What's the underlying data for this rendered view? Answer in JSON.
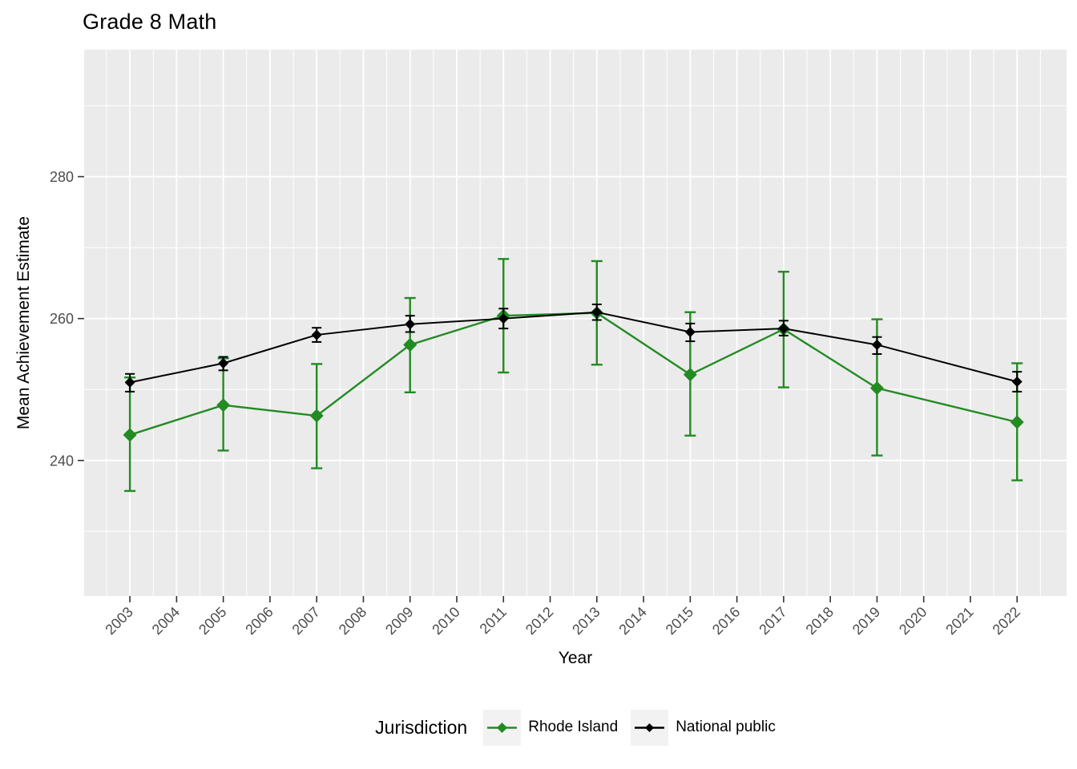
{
  "chart_data": {
    "type": "line",
    "title": "Grade 8 Math",
    "xlabel": "Year",
    "ylabel": "Mean Achievement Estimate",
    "legend": {
      "title": "Jurisdiction",
      "position": "bottom"
    },
    "x_ticks": [
      2003,
      2004,
      2005,
      2006,
      2007,
      2008,
      2009,
      2010,
      2011,
      2012,
      2013,
      2014,
      2015,
      2016,
      2017,
      2018,
      2019,
      2020,
      2021,
      2022
    ],
    "y_ticks": [
      240,
      260,
      280
    ],
    "y_minor_ticks": [
      230,
      250,
      270,
      290
    ],
    "x_domain": [
      2002.02,
      2023.06
    ],
    "y_domain": [
      220.9,
      297.9
    ],
    "grid": true,
    "x": [
      2003,
      2005,
      2007,
      2009,
      2011,
      2013,
      2015,
      2017,
      2019,
      2022
    ],
    "series": [
      {
        "name": "Rhode Island",
        "color": "#228B22",
        "marker": "diamond",
        "values": [
          243.6,
          247.8,
          246.3,
          256.3,
          260.4,
          260.8,
          252.1,
          258.5,
          250.2,
          245.4
        ],
        "err_low": [
          235.7,
          241.4,
          238.9,
          249.6,
          252.4,
          253.5,
          243.5,
          250.3,
          240.7,
          237.2
        ],
        "err_high": [
          251.7,
          254.4,
          253.6,
          262.9,
          268.4,
          268.1,
          260.9,
          266.6,
          259.9,
          253.7
        ]
      },
      {
        "name": "National public",
        "color": "#000000",
        "marker": "diamond",
        "values": [
          251.0,
          253.7,
          257.7,
          259.2,
          260.0,
          260.9,
          258.1,
          258.6,
          256.3,
          251.1
        ],
        "err_low": [
          249.7,
          252.7,
          256.7,
          258.1,
          258.6,
          259.8,
          256.8,
          257.6,
          255.0,
          249.7
        ],
        "err_high": [
          252.2,
          254.6,
          258.7,
          260.4,
          261.4,
          262.0,
          259.3,
          259.7,
          257.4,
          252.5
        ]
      }
    ],
    "colors": {
      "panel_background": "#EBEBEB",
      "grid_major": "#FFFFFF",
      "grid_minor": "#FFFFFF",
      "tick_mark": "#333333",
      "tick_label": "#4D4D4D",
      "legend_key_background": "#F2F2F2"
    }
  }
}
